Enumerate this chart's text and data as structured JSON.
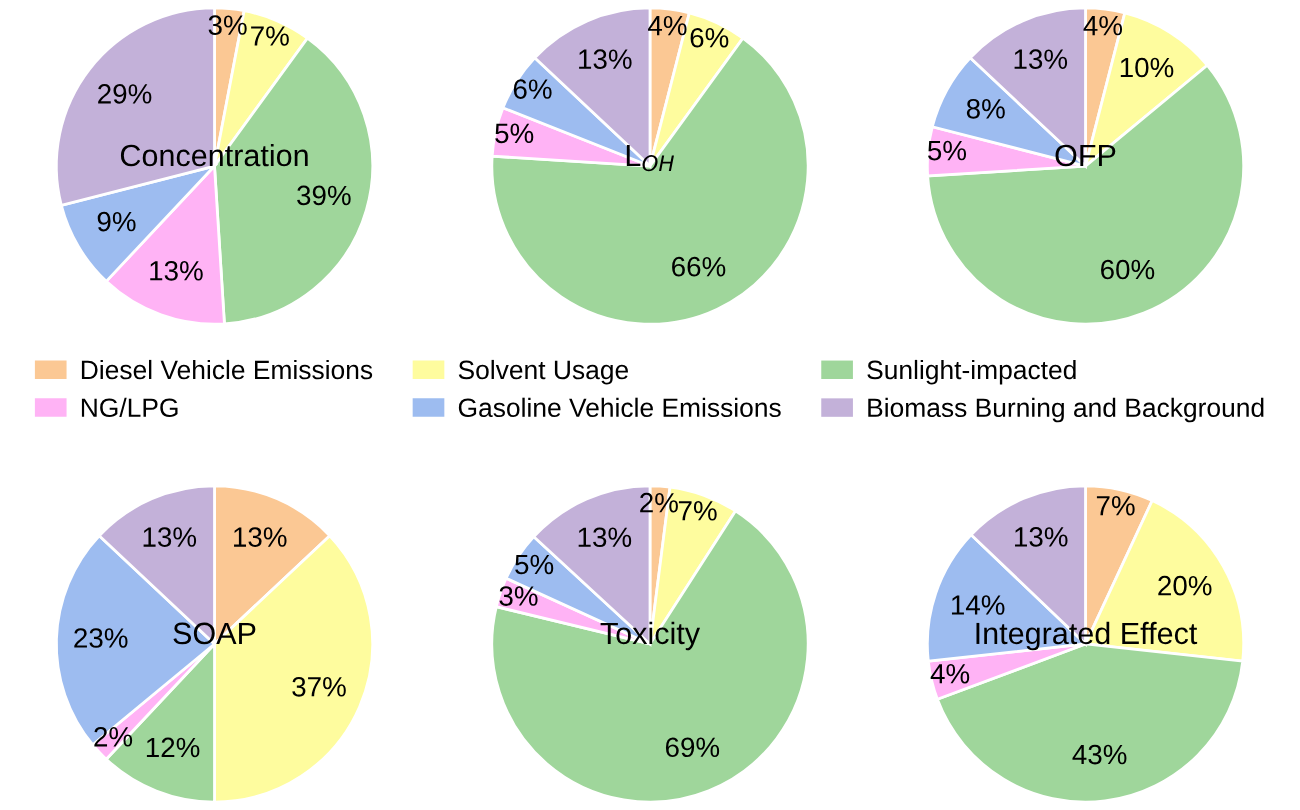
{
  "chart_data": [
    {
      "type": "pie",
      "title": "Concentration",
      "categories": [
        "Diesel Vehicle Emissions",
        "Solvent Usage",
        "Sunlight-impacted",
        "NG/LPG",
        "Gasoline Vehicle Emissions",
        "Biomass Burning and Background"
      ],
      "values": [
        3,
        7,
        39,
        13,
        9,
        29
      ],
      "value_labels": [
        "3%",
        "7%",
        "39%",
        "13%",
        "9%",
        "29%"
      ],
      "colors": [
        "#fbc894",
        "#fefc9e",
        "#9fd69b",
        "#ffb3f5",
        "#9dbcf0",
        "#c3b1d9"
      ],
      "legend": "bottom"
    },
    {
      "type": "pie",
      "title": "L$_{OH}$",
      "categories": [
        null,
        null,
        null,
        null,
        null,
        null
      ],
      "values": [
        4,
        6,
        66,
        5,
        6,
        13
      ],
      "value_labels": [
        "4%",
        "6%",
        "66%",
        "5%",
        "6%",
        "13%"
      ],
      "colors": [
        "#fbc894",
        "#fefc9e",
        "#9fd69b",
        "#ffb3f5",
        "#9dbcf0",
        "#c3b1d9"
      ]
    },
    {
      "type": "pie",
      "title": "OFP",
      "categories": [
        null,
        null,
        null,
        null,
        null,
        null
      ],
      "values": [
        4,
        10,
        60,
        5,
        8,
        13
      ],
      "value_labels": [
        "4%",
        "10%",
        "60%",
        "5%",
        "8%",
        "13%"
      ],
      "colors": [
        "#fbc894",
        "#fefc9e",
        "#9fd69b",
        "#ffb3f5",
        "#9dbcf0",
        "#c3b1d9"
      ]
    },
    {
      "type": "pie",
      "title": "SOAP",
      "categories": [
        null,
        null,
        null,
        null,
        null,
        null
      ],
      "values": [
        13,
        37,
        12,
        2,
        23,
        13
      ],
      "value_labels": [
        "13%",
        "37%",
        "12%",
        "2%",
        "23%",
        "13%"
      ],
      "colors": [
        "#fbc894",
        "#fefc9e",
        "#9fd69b",
        "#ffb3f5",
        "#9dbcf0",
        "#c3b1d9"
      ]
    },
    {
      "type": "pie",
      "title": "Toxicity",
      "categories": [
        null,
        null,
        null,
        null,
        null,
        null
      ],
      "values": [
        2,
        7,
        69,
        3,
        5,
        13
      ],
      "value_labels": [
        "2%",
        "7%",
        "69%",
        "3%",
        "5%",
        "13%"
      ],
      "colors": [
        "#fbc894",
        "#fefc9e",
        "#9fd69b",
        "#ffb3f5",
        "#9dbcf0",
        "#c3b1d9"
      ]
    },
    {
      "type": "pie",
      "title": "Integrated Effect",
      "categories": [
        null,
        null,
        null,
        null,
        null,
        null
      ],
      "values": [
        7,
        20,
        43,
        4,
        14,
        13
      ],
      "value_labels": [
        "7%",
        "20%",
        "43%",
        "4%",
        "14%",
        "13%"
      ],
      "colors": [
        "#fbc894",
        "#fefc9e",
        "#9fd69b",
        "#ffb3f5",
        "#9dbcf0",
        "#c3b1d9"
      ]
    }
  ]
}
